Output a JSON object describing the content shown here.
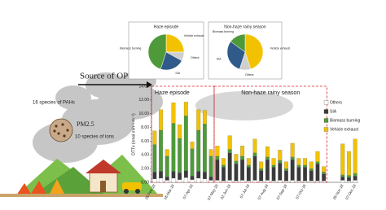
{
  "chart_data": [
    {
      "type": "stacked-bar",
      "ylabel": "DTTv (nmol min⁻¹ m⁻³)",
      "annotations": [
        "Haze episode",
        "Non-haze rainy season"
      ],
      "categories": [
        "28-Feb-18",
        null,
        null,
        "16-Mar-18",
        null,
        null,
        "07-Apr-18",
        null,
        null,
        null,
        "07-May-18",
        null,
        "02-Jun-18",
        null,
        null,
        "07-Jul-18",
        null,
        null,
        "07-Aug-18",
        null,
        null,
        "07-Sep-18",
        null,
        null,
        "07-Oct-18",
        null,
        null,
        null,
        null,
        null,
        "28-Nov-18",
        null,
        "07-Dec-18"
      ],
      "series": [
        {
          "name": "Others",
          "color": "#ffffff",
          "values": [
            0.5,
            0.6,
            0.3,
            0.6,
            0.4,
            0.7,
            0.4,
            0.6,
            0.5,
            0.3,
            0.3,
            0.2,
            0.3,
            0.2,
            0.3,
            0.2,
            0.3,
            0.2,
            0.3,
            0.2,
            0.3,
            0.2,
            0.3,
            0.2,
            0.2,
            0.2,
            0.2,
            0.2,
            0,
            0,
            0.3,
            0.2,
            0.3
          ]
        },
        {
          "name": "SIA",
          "color": "#3a3a3a",
          "values": [
            1,
            1,
            0.5,
            1,
            1,
            1,
            0.5,
            1,
            1,
            0.5,
            3,
            2,
            4,
            2.5,
            3,
            2,
            3.5,
            1.5,
            3,
            2,
            2.5,
            1.5,
            3,
            2,
            2,
            1.5,
            2.5,
            1,
            0,
            0,
            0.5,
            0.5,
            0.6
          ]
        },
        {
          "name": "Biomass burning",
          "color": "#4e9a3a",
          "values": [
            4,
            6,
            3,
            7,
            5,
            8,
            4,
            6,
            7,
            3,
            0.5,
            0.3,
            0.5,
            0.4,
            0.5,
            0.3,
            0.5,
            0.3,
            0.4,
            0.3,
            0.4,
            0.3,
            0.4,
            0.3,
            0.3,
            0.3,
            0.3,
            0.3,
            0,
            0,
            0.3,
            0.3,
            0.4
          ]
        },
        {
          "name": "Vehicle exhaust",
          "color": "#f2c200",
          "values": [
            2,
            3,
            1,
            3,
            2,
            2,
            1,
            3,
            2,
            1,
            1.5,
            1,
            2,
            1,
            1.5,
            1,
            2,
            1,
            1.5,
            1,
            1.5,
            1,
            2,
            1,
            1,
            1,
            1.5,
            0.8,
            0,
            0,
            4.5,
            3.5,
            5
          ]
        }
      ],
      "ylim": [
        0,
        14
      ],
      "yticks": [
        {
          "value": 0,
          "label": "0.00"
        },
        {
          "value": 2,
          "label": "2.00"
        },
        {
          "value": 4,
          "label": "4.00"
        },
        {
          "value": 6,
          "label": "6.00"
        },
        {
          "value": 8,
          "label": "8.00"
        },
        {
          "value": 10,
          "label": "10.00"
        },
        {
          "value": 12,
          "label": "12.00"
        },
        {
          "value": 14,
          "label": "14.00"
        }
      ],
      "legend": "right"
    },
    {
      "type": "pie",
      "title": "Haze episode",
      "categories": [
        "Vehicle exhaust",
        "Others",
        "SIA",
        "Biomass burning"
      ],
      "colors": [
        "#f2c200",
        "#cfcfcf",
        "#2f5a8a",
        "#4e9a3a"
      ],
      "values": [
        25,
        8,
        22,
        45
      ]
    },
    {
      "type": "pie",
      "title": "Non-haze rainy season",
      "categories": [
        "Vehicle exhaust",
        "Others",
        "SIA",
        "Biomass burning"
      ],
      "colors": [
        "#f2c200",
        "#cfcfcf",
        "#2f5a8a",
        "#4e9a3a"
      ],
      "values": [
        45,
        10,
        30,
        15
      ]
    }
  ],
  "illustration": {
    "source": "Source of OP",
    "particle": "PM2.5",
    "pahs": "16 species of PAHs",
    "ions": "10 species of ions"
  }
}
